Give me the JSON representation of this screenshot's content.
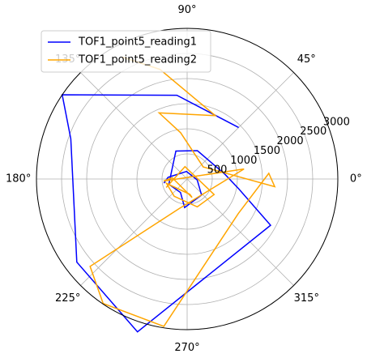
{
  "chart_data": {
    "type": "line",
    "projection": "polar",
    "title": "",
    "grid": true,
    "legend_position": "top-left",
    "rlim": [
      0,
      3000
    ],
    "r_ticks": [
      500,
      1000,
      1500,
      2000,
      2500,
      3000
    ],
    "r_tick_labels": [
      "500",
      "1000",
      "1500",
      "2000",
      "2500",
      "3000"
    ],
    "theta_ticks_deg": [
      0,
      45,
      90,
      135,
      180,
      225,
      270,
      315
    ],
    "theta_tick_labels": [
      "0°",
      "45°",
      "90°",
      "135°",
      "180°",
      "225°",
      "270°",
      "315°"
    ],
    "series": [
      {
        "name": "TOF1_point5_reading1",
        "color": "#0000ff",
        "theta_deg": [
          45,
          97,
          146,
          161,
          217,
          252,
          331,
          349,
          7,
          70,
          112,
          196,
          244,
          265,
          312,
          355,
          95,
          175,
          190
        ],
        "r": [
          1450,
          1680,
          3000,
          2450,
          2750,
          3200,
          1900,
          1050,
          760,
          600,
          600,
          380,
          300,
          570,
          430,
          200,
          150,
          380,
          470
        ]
      },
      {
        "name": "TOF1_point5_reading2",
        "color": "#ffa500",
        "theta_deg": [
          118,
          104,
          66,
          113,
          98,
          37,
          355,
          4,
          326,
          261,
          236,
          222,
          255,
          10,
          185,
          175,
          285,
          280,
          192,
          233,
          290,
          330,
          100,
          202
        ],
        "r": [
          2750,
          2250,
          1380,
          1430,
          930,
          400,
          1750,
          1630,
          1230,
          2970,
          2990,
          2600,
          610,
          1150,
          470,
          300,
          380,
          310,
          420,
          430,
          590,
          620,
          250,
          450
        ]
      }
    ]
  }
}
